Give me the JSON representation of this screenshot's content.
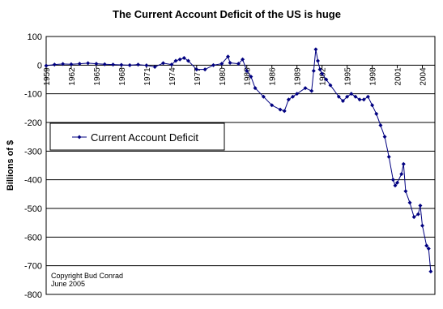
{
  "chart_data": {
    "type": "line",
    "title": "The Current Account Deficit of the US is huge",
    "y_label": "Billions of $",
    "annotations": [
      "Copyright Bud Conrad",
      "June 2005"
    ],
    "legend": "upper left",
    "grid": true,
    "xlim": [
      1959,
      2005.5
    ],
    "ylim": [
      -800,
      100
    ],
    "xticks": [
      1959,
      1962,
      1965,
      1968,
      1971,
      1974,
      1977,
      1980,
      1983,
      1986,
      1989,
      1992,
      1995,
      1998,
      2001,
      2004
    ],
    "yticks": [
      -800,
      -700,
      -600,
      -500,
      -400,
      -300,
      -200,
      -100,
      0,
      100
    ],
    "series": [
      {
        "name": "Current Account Deficit",
        "color": "#000080",
        "x": [
          1959,
          1960,
          1961,
          1962,
          1963,
          1964,
          1965,
          1966,
          1967,
          1968,
          1969,
          1970,
          1971,
          1972,
          1973,
          1974,
          1974.5,
          1975,
          1975.5,
          1976,
          1977,
          1978,
          1979,
          1980,
          1980.75,
          1981,
          1982,
          1982.5,
          1983,
          1983.5,
          1984,
          1985,
          1986,
          1987,
          1987.5,
          1988,
          1988.5,
          1989,
          1990,
          1990.75,
          1991,
          1991.25,
          1991.5,
          1991.75,
          1992,
          1992.5,
          1993,
          1994,
          1994.5,
          1995,
          1995.5,
          1996,
          1996.5,
          1997,
          1997.5,
          1998,
          1998.5,
          1999,
          1999.5,
          2000,
          2000.5,
          2000.75,
          2001,
          2001.5,
          2001.75,
          2002,
          2002.5,
          2003,
          2003.5,
          2003.75,
          2004,
          2004.5,
          2004.75,
          2005
        ],
        "values": [
          -2,
          2,
          4,
          3,
          5,
          7,
          5,
          3,
          2,
          1,
          0,
          2,
          -1,
          -6,
          7,
          2,
          15,
          20,
          25,
          15,
          -15,
          -15,
          0,
          5,
          30,
          8,
          5,
          20,
          -20,
          -40,
          -80,
          -110,
          -140,
          -155,
          -160,
          -120,
          -110,
          -100,
          -80,
          -90,
          -20,
          55,
          15,
          -15,
          -30,
          -50,
          -70,
          -110,
          -125,
          -110,
          -100,
          -110,
          -120,
          -120,
          -110,
          -140,
          -170,
          -210,
          -250,
          -320,
          -400,
          -420,
          -410,
          -380,
          -345,
          -440,
          -480,
          -530,
          -520,
          -490,
          -560,
          -630,
          -640,
          -720
        ]
      }
    ]
  }
}
